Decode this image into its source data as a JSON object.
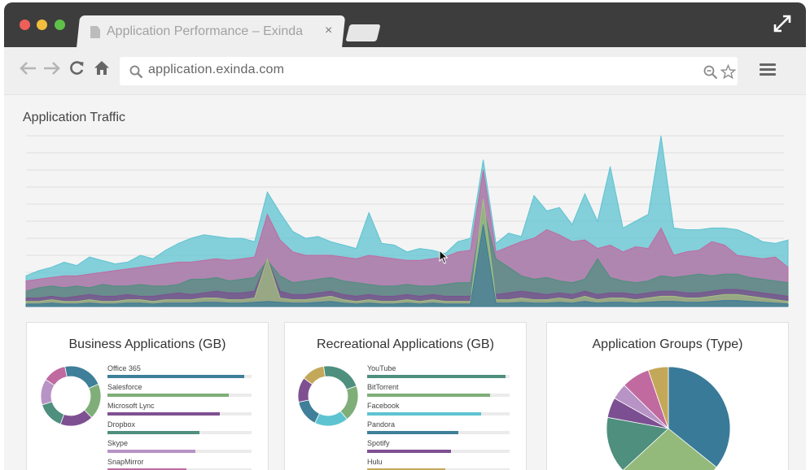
{
  "browser": {
    "tab_title": "Application Performance – Exinda",
    "tab_close": "×",
    "url": "application.exinda.com"
  },
  "icons": [
    "back-arrow-icon",
    "forward-arrow-icon",
    "reload-icon",
    "home-icon",
    "search-icon",
    "zoom-out-icon",
    "bookmark-star-icon",
    "hamburger-menu-icon",
    "document-icon",
    "expand-icon"
  ],
  "colors": {
    "teal": "#5ec3d1",
    "pink": "#c06aa0",
    "green": "#4e8f7e",
    "purple": "#7b4f91",
    "olive": "#a5c27f",
    "blue": "#3a7a99",
    "lavender": "#b893c5",
    "mustard": "#c4a85a",
    "titlebar": "#3d3d3d"
  },
  "traffic": {
    "title": "Application Traffic",
    "chart_data": {
      "type": "area",
      "title": "Application Traffic",
      "series": [
        {
          "color": "#5ec3d1",
          "values": [
            1.8,
            2.1,
            2.3,
            2.6,
            2.4,
            2.9,
            2.7,
            2.5,
            2.6,
            3.0,
            2.8,
            3.3,
            3.7,
            4.0,
            4.2,
            4.1,
            4.0,
            4.0,
            3.8,
            6.7,
            5.5,
            4.4,
            4.0,
            4.1,
            3.8,
            3.6,
            3.4,
            5.5,
            3.7,
            3.6,
            3.2,
            3.4,
            3.3,
            3.1,
            3.8,
            4.0,
            8.6,
            3.7,
            4.3,
            4.1,
            6.5,
            5.6,
            5.8,
            4.8,
            6.6,
            5.0,
            8.2,
            4.6,
            5.0,
            5.4,
            10.0,
            4.6,
            4.5,
            4.5,
            4.6,
            4.6,
            4.5,
            4.2,
            3.8,
            3.7,
            3.9
          ]
        },
        {
          "color": "#c06aa0",
          "values": [
            1.5,
            1.6,
            1.7,
            1.8,
            1.8,
            1.9,
            2.0,
            2.1,
            2.2,
            2.3,
            2.4,
            2.5,
            2.6,
            2.6,
            2.7,
            2.8,
            2.7,
            2.8,
            2.9,
            5.4,
            3.9,
            3.2,
            3.0,
            3.0,
            3.0,
            2.9,
            2.8,
            3.0,
            2.9,
            2.8,
            2.7,
            2.7,
            2.8,
            2.9,
            3.2,
            3.3,
            8.0,
            3.2,
            3.5,
            3.8,
            4.0,
            4.5,
            4.2,
            3.8,
            3.9,
            3.4,
            3.6,
            3.2,
            3.5,
            3.4,
            4.6,
            3.0,
            3.2,
            3.3,
            3.8,
            3.6,
            3.0,
            2.9,
            2.8,
            2.9,
            2.3
          ]
        },
        {
          "color": "#4e8f7e",
          "values": [
            0.9,
            1.1,
            1.2,
            1.1,
            1.2,
            1.1,
            1.3,
            1.2,
            1.2,
            1.3,
            1.2,
            1.2,
            1.3,
            1.6,
            1.6,
            1.7,
            1.5,
            1.6,
            1.7,
            2.7,
            1.8,
            1.4,
            1.5,
            1.6,
            1.7,
            1.5,
            1.4,
            1.3,
            1.2,
            1.2,
            1.3,
            1.2,
            1.2,
            1.3,
            1.4,
            1.4,
            5.8,
            2.8,
            2.3,
            1.8,
            1.6,
            1.7,
            1.5,
            1.4,
            1.6,
            2.8,
            1.7,
            1.5,
            1.4,
            1.5,
            1.8,
            1.7,
            1.8,
            1.9,
            1.8,
            1.9,
            1.9,
            1.7,
            1.6,
            1.5,
            1.4
          ]
        },
        {
          "color": "#7b4f91",
          "values": [
            0.5,
            0.5,
            0.6,
            0.5,
            0.6,
            0.7,
            0.6,
            0.6,
            0.7,
            0.6,
            0.6,
            0.7,
            0.8,
            0.7,
            0.8,
            0.9,
            0.8,
            0.8,
            0.9,
            2.8,
            0.9,
            0.7,
            0.7,
            0.8,
            0.9,
            0.7,
            0.6,
            0.7,
            0.6,
            0.6,
            0.7,
            0.6,
            0.7,
            0.6,
            0.6,
            0.6,
            3.2,
            0.7,
            0.8,
            0.9,
            0.8,
            0.7,
            0.8,
            0.7,
            0.9,
            0.7,
            0.8,
            0.8,
            0.7,
            0.8,
            0.9,
            0.9,
            0.8,
            0.8,
            0.9,
            1.0,
            1.0,
            0.9,
            0.8,
            0.7,
            0.6
          ]
        },
        {
          "color": "#a5c27f",
          "values": [
            0.3,
            0.3,
            0.4,
            0.3,
            0.3,
            0.4,
            0.3,
            0.3,
            0.4,
            0.4,
            0.3,
            0.4,
            0.4,
            0.4,
            0.5,
            0.5,
            0.4,
            0.4,
            0.5,
            2.8,
            0.5,
            0.4,
            0.4,
            0.5,
            0.6,
            0.4,
            0.3,
            0.4,
            0.3,
            0.3,
            0.4,
            0.3,
            0.4,
            0.3,
            0.3,
            0.3,
            6.3,
            0.4,
            0.4,
            0.5,
            0.4,
            0.4,
            0.5,
            0.4,
            0.6,
            0.4,
            0.5,
            0.5,
            0.4,
            0.5,
            0.6,
            0.6,
            0.5,
            0.5,
            0.6,
            0.7,
            0.7,
            0.6,
            0.5,
            0.4,
            0.3
          ]
        },
        {
          "color": "#3a7a99",
          "values": [
            0.15,
            0.15,
            0.2,
            0.15,
            0.15,
            0.2,
            0.15,
            0.15,
            0.2,
            0.2,
            0.15,
            0.2,
            0.2,
            0.2,
            0.25,
            0.25,
            0.2,
            0.2,
            0.25,
            0.3,
            0.25,
            0.2,
            0.2,
            0.25,
            0.3,
            0.2,
            0.15,
            0.2,
            0.15,
            0.15,
            0.2,
            0.15,
            0.2,
            0.15,
            0.15,
            0.15,
            4.8,
            0.2,
            0.2,
            0.25,
            0.2,
            0.2,
            0.25,
            0.2,
            0.3,
            0.2,
            0.25,
            0.25,
            0.2,
            0.25,
            0.3,
            0.3,
            0.25,
            0.25,
            0.3,
            0.35,
            0.35,
            0.3,
            0.25,
            0.2,
            0.15
          ]
        }
      ],
      "ylim": [
        0,
        10
      ],
      "grid": true
    }
  },
  "cards": [
    {
      "title": "Business Applications (GB)",
      "chart_data": {
        "type": "pie",
        "categories": [
          "Office 365",
          "Salesforce",
          "Microsoft Lync",
          "Dropbox",
          "Skype",
          "SnapMirror"
        ],
        "values": [
          95,
          84,
          78,
          64,
          61,
          55
        ],
        "colors": [
          "#3f7f99",
          "#7fae78",
          "#7f5091",
          "#4e8f7e",
          "#b893c5",
          "#c06aa0"
        ],
        "max": 100
      }
    },
    {
      "title": "Recreational Applications (GB)",
      "chart_data": {
        "type": "pie",
        "categories": [
          "YouTube",
          "BitTorrent",
          "Facebook",
          "Pandora",
          "Spotify",
          "Hulu"
        ],
        "values": [
          97,
          86,
          80,
          64,
          59,
          55
        ],
        "colors": [
          "#4e8f7e",
          "#7fae78",
          "#5ec3d1",
          "#3f7f99",
          "#7f5091",
          "#c4a85a"
        ],
        "max": 100
      }
    },
    {
      "title": "Application Groups (Type)",
      "chart_data": {
        "type": "pie",
        "values": [
          34,
          26,
          14,
          5,
          4,
          7,
          5
        ],
        "colors": [
          "#3a7a99",
          "#93ba7a",
          "#4e8f7e",
          "#7b4f91",
          "#b893c5",
          "#c06aa0",
          "#c4a85a"
        ]
      }
    }
  ]
}
